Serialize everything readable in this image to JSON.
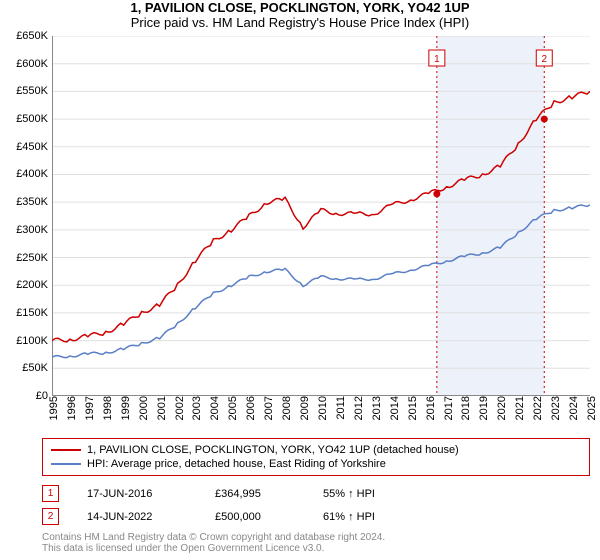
{
  "title": "1, PAVILION CLOSE, POCKLINGTON, YORK, YO42 1UP",
  "subtitle": "Price paid vs. HM Land Registry's House Price Index (HPI)",
  "chart": {
    "type": "line",
    "background_color": "#ffffff",
    "grid_color": "#e0e0e0",
    "highlight_band_color": "#c8d8f0",
    "highlight_band_opacity": 0.35,
    "line_width": 1.5,
    "title_fontsize": 13,
    "label_fontsize": 11,
    "x": {
      "min": 1995,
      "max": 2025,
      "ticks": [
        1995,
        1996,
        1997,
        1998,
        1999,
        2000,
        2001,
        2002,
        2003,
        2004,
        2005,
        2006,
        2007,
        2008,
        2009,
        2010,
        2011,
        2012,
        2013,
        2014,
        2015,
        2016,
        2017,
        2018,
        2019,
        2020,
        2021,
        2022,
        2023,
        2024,
        2025
      ]
    },
    "y": {
      "min": 0,
      "max": 650000,
      "tick_step": 50000,
      "prefix": "£",
      "ticks": [
        0,
        50000,
        100000,
        150000,
        200000,
        250000,
        300000,
        350000,
        400000,
        450000,
        500000,
        550000,
        600000,
        650000
      ],
      "suffix": "K",
      "divisor": 1000
    },
    "highlight_band": {
      "start": 2016.46,
      "end": 2022.45
    },
    "event_lines": [
      {
        "x": 2016.46,
        "color": "#cc0000",
        "dash": "2,3"
      },
      {
        "x": 2022.45,
        "color": "#cc0000",
        "dash": "2,3"
      }
    ],
    "series": [
      {
        "name": "property",
        "color": "#cc0000",
        "points": [
          [
            1995,
            100000
          ],
          [
            1996,
            102000
          ],
          [
            1997,
            108000
          ],
          [
            1998,
            115000
          ],
          [
            1999,
            130000
          ],
          [
            2000,
            150000
          ],
          [
            2001,
            165000
          ],
          [
            2002,
            200000
          ],
          [
            2003,
            245000
          ],
          [
            2004,
            280000
          ],
          [
            2005,
            300000
          ],
          [
            2006,
            325000
          ],
          [
            2007,
            350000
          ],
          [
            2008,
            355000
          ],
          [
            2009,
            305000
          ],
          [
            2010,
            335000
          ],
          [
            2011,
            330000
          ],
          [
            2012,
            328000
          ],
          [
            2013,
            330000
          ],
          [
            2014,
            345000
          ],
          [
            2015,
            355000
          ],
          [
            2016,
            365000
          ],
          [
            2017,
            378000
          ],
          [
            2018,
            390000
          ],
          [
            2019,
            400000
          ],
          [
            2020,
            415000
          ],
          [
            2021,
            455000
          ],
          [
            2022,
            500000
          ],
          [
            2023,
            530000
          ],
          [
            2024,
            540000
          ],
          [
            2025,
            550000
          ]
        ]
      },
      {
        "name": "hpi",
        "color": "#5a7fc7",
        "points": [
          [
            1995,
            70000
          ],
          [
            1996,
            72000
          ],
          [
            1997,
            76000
          ],
          [
            1998,
            78000
          ],
          [
            1999,
            85000
          ],
          [
            2000,
            95000
          ],
          [
            2001,
            105000
          ],
          [
            2002,
            130000
          ],
          [
            2003,
            160000
          ],
          [
            2004,
            185000
          ],
          [
            2005,
            200000
          ],
          [
            2006,
            215000
          ],
          [
            2007,
            225000
          ],
          [
            2008,
            228000
          ],
          [
            2009,
            200000
          ],
          [
            2010,
            215000
          ],
          [
            2011,
            212000
          ],
          [
            2012,
            210000
          ],
          [
            2013,
            212000
          ],
          [
            2014,
            220000
          ],
          [
            2015,
            228000
          ],
          [
            2016,
            235000
          ],
          [
            2017,
            244000
          ],
          [
            2018,
            252000
          ],
          [
            2019,
            258000
          ],
          [
            2020,
            268000
          ],
          [
            2021,
            295000
          ],
          [
            2022,
            320000
          ],
          [
            2023,
            335000
          ],
          [
            2024,
            340000
          ],
          [
            2025,
            345000
          ]
        ]
      }
    ],
    "markers": [
      {
        "label": "1",
        "x": 2016.46,
        "y": 364995,
        "color": "#cc0000"
      },
      {
        "label": "2",
        "x": 2022.45,
        "y": 500000,
        "color": "#cc0000"
      }
    ]
  },
  "legend": {
    "items": [
      {
        "color": "#cc0000",
        "text": "1, PAVILION CLOSE, POCKLINGTON, YORK, YO42 1UP (detached house)"
      },
      {
        "color": "#5a7fc7",
        "text": "HPI: Average price, detached house, East Riding of Yorkshire"
      }
    ]
  },
  "sales": [
    {
      "marker": "1",
      "date": "17-JUN-2016",
      "price": "£364,995",
      "note": "55% ↑ HPI"
    },
    {
      "marker": "2",
      "date": "14-JUN-2022",
      "price": "£500,000",
      "note": "61% ↑ HPI"
    }
  ],
  "attribution": {
    "line1": "Contains HM Land Registry data © Crown copyright and database right 2024.",
    "line2": "This data is licensed under the Open Government Licence v3.0."
  }
}
